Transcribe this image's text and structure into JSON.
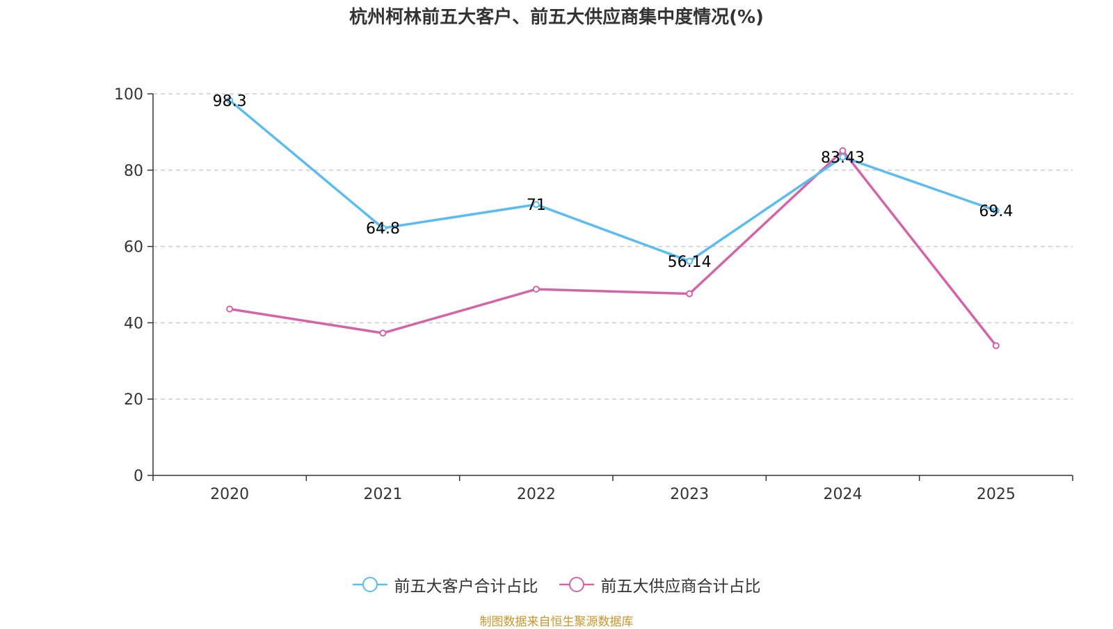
{
  "chart_data": {
    "type": "line",
    "title": "杭州柯林前五大客户、前五大供应商集中度情况(%)",
    "categories": [
      "2020",
      "2021",
      "2022",
      "2023",
      "2024",
      "2025"
    ],
    "ylim": [
      0,
      100
    ],
    "yticks": [
      0,
      20,
      40,
      60,
      80,
      100
    ],
    "grid": true,
    "series": [
      {
        "name": "前五大客户合计占比",
        "color": "#5bbcf0",
        "values": [
          98.3,
          64.8,
          71,
          56.14,
          83.43,
          69.4
        ],
        "labels": [
          "98.3",
          "64.8",
          "71",
          "56.14",
          "83.43",
          "69.4"
        ]
      },
      {
        "name": "前五大供应商合计占比",
        "color": "#d463a8",
        "values": [
          43.6,
          37.3,
          48.8,
          47.6,
          85.1,
          34.0
        ],
        "labels": []
      }
    ],
    "legend_position": "bottom",
    "source": "制图数据来自恒生聚源数据库"
  }
}
